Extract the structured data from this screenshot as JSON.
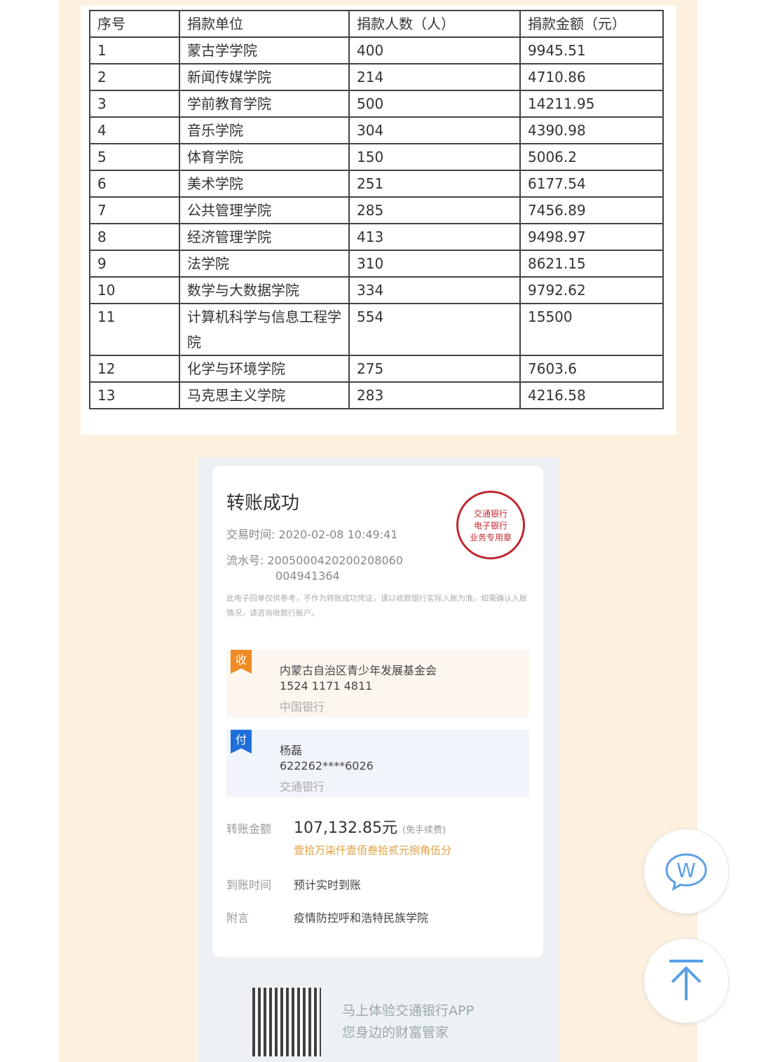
{
  "table": {
    "headers": [
      "序号",
      "捐款单位",
      "捐款人数（人）",
      "捐款金额（元）"
    ],
    "rows": [
      [
        "1",
        "蒙古学学院",
        "400",
        "9945.51"
      ],
      [
        "2",
        "新闻传媒学院",
        "214",
        "4710.86"
      ],
      [
        "3",
        "学前教育学院",
        "500",
        "14211.95"
      ],
      [
        "4",
        "音乐学院",
        "304",
        "4390.98"
      ],
      [
        "5",
        "体育学院",
        "150",
        "5006.2"
      ],
      [
        "6",
        "美术学院",
        "251",
        "6177.54"
      ],
      [
        "7",
        "公共管理学院",
        "285",
        "7456.89"
      ],
      [
        "8",
        "经济管理学院",
        "413",
        "9498.97"
      ],
      [
        "9",
        "法学院",
        "310",
        "8621.15"
      ],
      [
        "10",
        "数学与大数据学院",
        "334",
        "9792.62"
      ],
      [
        "11",
        "计算机科学与信息工程学院",
        "554",
        "15500"
      ],
      [
        "12",
        "化学与环境学院",
        "275",
        "7603.6"
      ],
      [
        "13",
        "马克思主义学院",
        "283",
        "4216.58"
      ]
    ]
  },
  "receipt": {
    "title": "转账成功",
    "time_label": "交易时间:",
    "time": "2020-02-08 10:49:41",
    "serial_label": "流水号:",
    "serial_1": "2005000420200208060",
    "serial_2": "004941364",
    "note": "此电子回单仅供参考，不作为转账成功凭证，请以收款银行实际入账为准。如需确认入账情况，请咨询收款行账户。",
    "stamp": "交通银行 电子银行 业务专用章",
    "payee": {
      "badge": "收",
      "name": "内蒙古自治区青少年发展基金会",
      "account": "1524 1171 4811",
      "bank": "中国银行"
    },
    "payer": {
      "badge": "付",
      "name": "杨磊",
      "account": "622262****6026",
      "bank": "交通银行"
    },
    "amount_label": "转账金额",
    "amount": "107,132.85元",
    "fee": "(免手续费)",
    "amount_upper": "壹拾万柒仟壹佰叁拾贰元捌角伍分",
    "arrival_label": "到账时间",
    "arrival": "预计实时到账",
    "memo_label": "附言",
    "memo": "疫情防控呼和浩特民族学院",
    "ad_1": "马上体验交通银行APP",
    "ad_2": "您身边的财富管家"
  },
  "colors": {
    "payee": "#f08a24",
    "payer": "#1e6fd9",
    "stamp": "#c0282f",
    "amount_upper": "#e0a040"
  }
}
